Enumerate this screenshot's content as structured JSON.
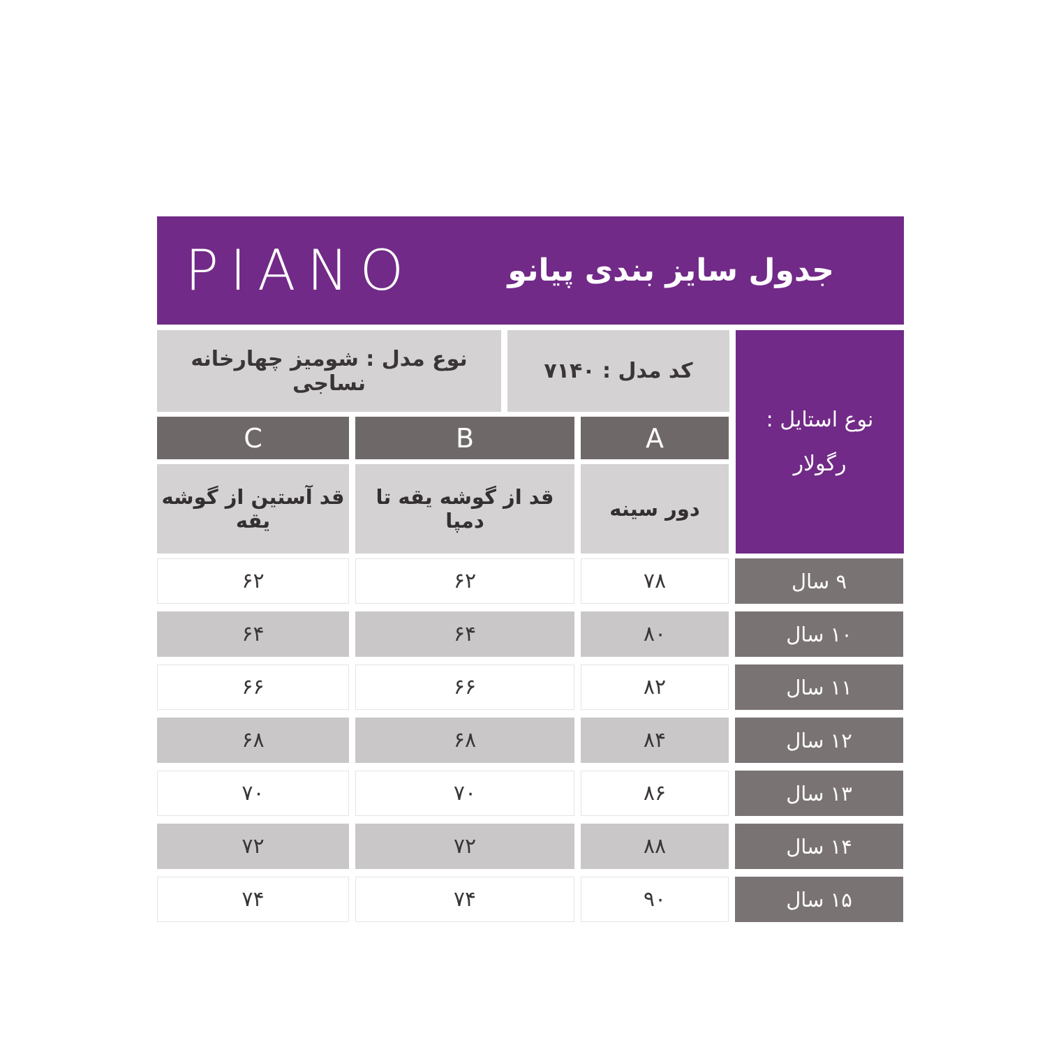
{
  "banner": {
    "logo": "PIANO",
    "title": "جدول سایز بندی پیانو"
  },
  "info": {
    "model_type": "نوع مدل : شومیز چهارخانه نساجی",
    "model_code": "کد مدل : ۷۱۴۰",
    "style_label": "نوع استایل :",
    "style_value": "رگولار"
  },
  "columns": {
    "c": {
      "letter": "C",
      "description": "قد آستین از گوشه یقه"
    },
    "b": {
      "letter": "B",
      "description": "قد از گوشه یقه تا دمپا"
    },
    "a": {
      "letter": "A",
      "description": "دور سینه"
    }
  },
  "rows": [
    {
      "age": "۹ سال",
      "c": "۶۲",
      "b": "۶۲",
      "a": "۷۸"
    },
    {
      "age": "۱۰ سال",
      "c": "۶۴",
      "b": "۶۴",
      "a": "۸۰"
    },
    {
      "age": "۱۱ سال",
      "c": "۶۶",
      "b": "۶۶",
      "a": "۸۲"
    },
    {
      "age": "۱۲ سال",
      "c": "۶۸",
      "b": "۶۸",
      "a": "۸۴"
    },
    {
      "age": "۱۳ سال",
      "c": "۷۰",
      "b": "۷۰",
      "a": "۸۶"
    },
    {
      "age": "۱۴ سال",
      "c": "۷۲",
      "b": "۷۲",
      "a": "۸۸"
    },
    {
      "age": "۱۵ سال",
      "c": "۷۴",
      "b": "۷۴",
      "a": "۹۰"
    }
  ],
  "colors": {
    "purple": "#712a87",
    "header_gray": "#6f6869",
    "age_gray": "#7a7374",
    "light_gray": "#d4d2d2",
    "row_alt_gray": "#c9c7c7",
    "text_dark": "#3a3536"
  }
}
